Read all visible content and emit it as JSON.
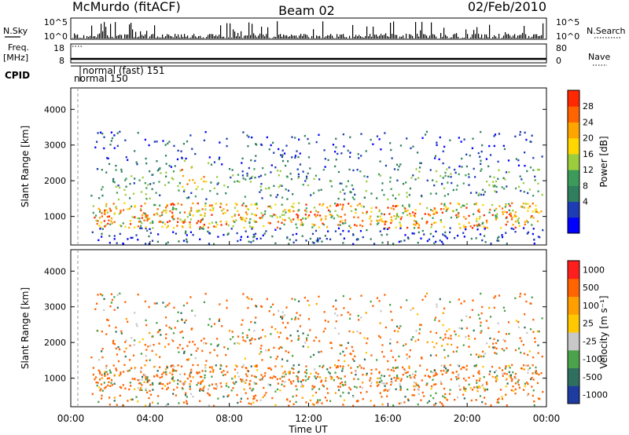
{
  "header": {
    "station": "McMurdo (fitACF)",
    "beam": "Beam 02",
    "date": "02/Feb/2010"
  },
  "left_labels": {
    "nsky": "N.Sky",
    "freq": "Freq.",
    "freq_unit": "[MHz]",
    "cpid": "CPID"
  },
  "right_labels": {
    "nsearch": "N.Search",
    "nave": "Nave"
  },
  "cpid_modes": {
    "mode1": "normal (fast) 151",
    "mode2": "normal 150"
  },
  "noise_axis": {
    "left_ticks": [
      "10^5",
      "10^0"
    ],
    "right_ticks": [
      "10^5",
      "10^0"
    ]
  },
  "freq_axis": {
    "left_ticks": [
      "18",
      "8"
    ],
    "right_ticks": [
      "80",
      "0"
    ]
  },
  "time_axis": {
    "label": "Time UT",
    "ticks": [
      "00:00",
      "04:00",
      "08:00",
      "12:00",
      "16:00",
      "20:00",
      "00:00"
    ]
  },
  "range_axis": {
    "label": "Slant Range [km]",
    "ticks": [
      "4000",
      "3000",
      "2000",
      "1000"
    ]
  },
  "power_scale": {
    "label": "Power [dB]",
    "ticks": [
      "28",
      "24",
      "20",
      "16",
      "12",
      "8",
      "4"
    ],
    "colors": [
      "#0000ff",
      "#1e3cb4",
      "#2f7f5f",
      "#3c9b5a",
      "#9bcd3c",
      "#ffd700",
      "#ffa500",
      "#ff6400",
      "#ff2800"
    ]
  },
  "velocity_scale": {
    "label": "Velocity [m s⁻¹]",
    "ticks": [
      "1000",
      "500",
      "100",
      "25",
      "-25",
      "-100",
      "-500",
      "-1000"
    ],
    "colors": [
      "#1e3ca0",
      "#2f6f5f",
      "#4aa24a",
      "#c8c8c8",
      "#ffc800",
      "#ffa000",
      "#ff6400",
      "#ff1e1e"
    ]
  },
  "chart_data": {
    "type": "heatmap",
    "title": "McMurdo (fitACF) Beam 02 02/Feb/2010",
    "xlabel": "Time UT",
    "panels": [
      {
        "name": "Power",
        "ylabel": "Slant Range [km]",
        "zlabel": "Power [dB]",
        "ylim": [
          200,
          4600
        ],
        "zticks": [
          4,
          8,
          12,
          16,
          20,
          24,
          28
        ]
      },
      {
        "name": "Velocity",
        "ylabel": "Slant Range [km]",
        "zlabel": "Velocity [m s^-1]",
        "ylim": [
          200,
          4600
        ],
        "zticks": [
          1000,
          500,
          100,
          25,
          -25,
          -100,
          -500,
          -1000
        ]
      }
    ],
    "xlim": [
      "00:00",
      "24:00"
    ]
  }
}
